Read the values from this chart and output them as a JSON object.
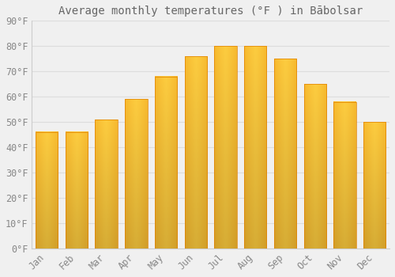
{
  "title": "Average monthly temperatures (°F ) in Bābolsar",
  "months": [
    "Jan",
    "Feb",
    "Mar",
    "Apr",
    "May",
    "Jun",
    "Jul",
    "Aug",
    "Sep",
    "Oct",
    "Nov",
    "Dec"
  ],
  "values": [
    46,
    46,
    51,
    59,
    68,
    76,
    80,
    80,
    75,
    65,
    58,
    50
  ],
  "bar_color_center": "#FFCC44",
  "bar_color_edge": "#F5A000",
  "background_color": "#F0F0F0",
  "grid_color": "#DDDDDD",
  "ylim": [
    0,
    90
  ],
  "yticks": [
    0,
    10,
    20,
    30,
    40,
    50,
    60,
    70,
    80,
    90
  ],
  "title_fontsize": 10,
  "tick_fontsize": 8.5,
  "font_color": "#888888",
  "title_color": "#666666"
}
